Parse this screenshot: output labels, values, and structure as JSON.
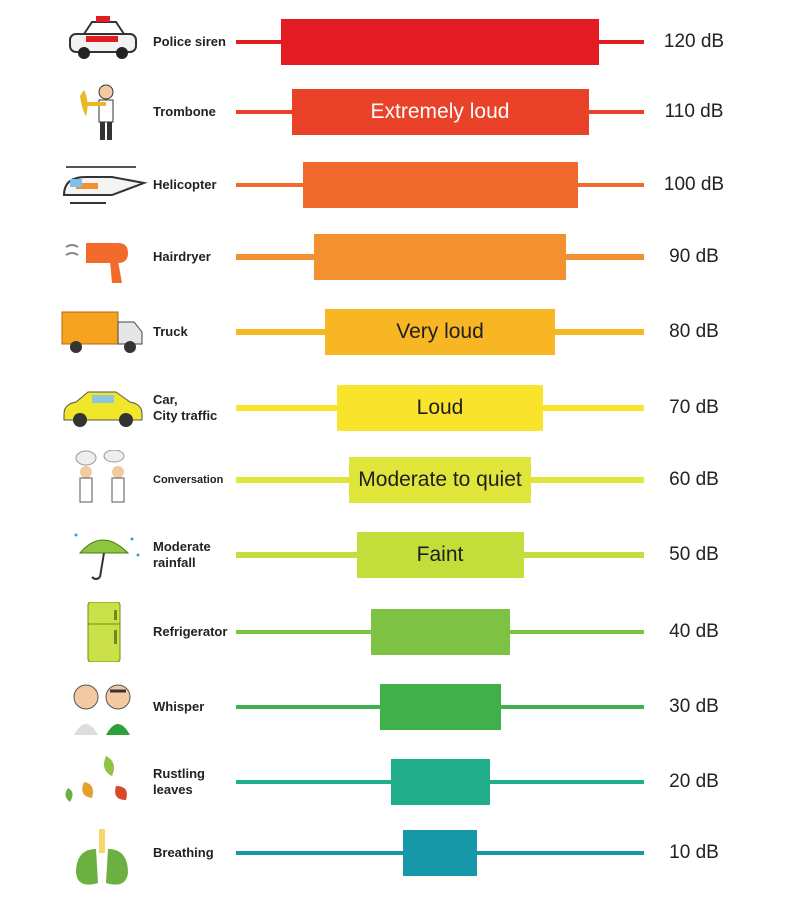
{
  "levels": [
    {
      "source": "Police siren",
      "value": "120 dB",
      "band": "",
      "color": "#e31b23",
      "icon": "police-car-icon"
    },
    {
      "source": "Trombone",
      "value": "110 dB",
      "band": "Extremely loud",
      "color": "#ea4228",
      "icon": "trombone-player-icon"
    },
    {
      "source": "Helicopter",
      "value": "100 dB",
      "band": "",
      "color": "#f16a2d",
      "icon": "helicopter-icon"
    },
    {
      "source": "Hairdryer",
      "value": "90 dB",
      "band": "",
      "color": "#f39130",
      "icon": "hairdryer-icon"
    },
    {
      "source": "Truck",
      "value": "80 dB",
      "band": "Very loud",
      "color": "#f8b625",
      "icon": "truck-icon"
    },
    {
      "source": "Car,\nCity traffic",
      "value": "70 dB",
      "band": "Loud",
      "color": "#f9e32c",
      "icon": "car-icon"
    },
    {
      "source": "Conversation",
      "value": "60 dB",
      "band": "Moderate to quiet",
      "color": "#e0e53a",
      "icon": "conversation-icon"
    },
    {
      "source": "Moderate\nrainfall",
      "value": "50 dB",
      "band": "Faint",
      "color": "#c3dd3a",
      "icon": "umbrella-rain-icon"
    },
    {
      "source": "Refrigerator",
      "value": "40 dB",
      "band": "",
      "color": "#7dc243",
      "icon": "refrigerator-icon"
    },
    {
      "source": "Whisper",
      "value": "30 dB",
      "band": "",
      "color": "#3fb04a",
      "icon": "whisper-icon"
    },
    {
      "source": "Rustling\nleaves",
      "value": "20 dB",
      "band": "",
      "color": "#21ae8a",
      "icon": "leaves-icon"
    },
    {
      "source": "Breathing",
      "value": "10 dB",
      "band": "",
      "color": "#1798a8",
      "icon": "lungs-icon"
    }
  ]
}
